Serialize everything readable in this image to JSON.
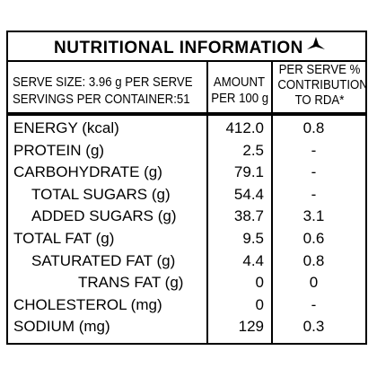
{
  "title": "NUTRITIONAL INFORMATION",
  "brand_icon": "star-emblem",
  "header": {
    "serve_size": "SERVE SIZE: 3.96 g PER SERVE",
    "servings": "SERVINGS PER CONTAINER:51",
    "amount_line1": "AMOUNT",
    "amount_line2": "PER 100 g",
    "rda_line1": "PER SERVE %",
    "rda_line2": "CONTRIBUTION",
    "rda_line3": "TO RDA*"
  },
  "rows": [
    {
      "label": "ENERGY (kcal)",
      "per100": "412.0",
      "rda": "0.8",
      "indent": 0
    },
    {
      "label": "PROTEIN (g)",
      "per100": "2.5",
      "rda": "-",
      "indent": 0
    },
    {
      "label": "CARBOHYDRATE (g)",
      "per100": "79.1",
      "rda": "-",
      "indent": 0
    },
    {
      "label": "TOTAL SUGARS (g)",
      "per100": "54.4",
      "rda": "-",
      "indent": 1
    },
    {
      "label": "ADDED SUGARS (g)",
      "per100": "38.7",
      "rda": "3.1",
      "indent": 1
    },
    {
      "label": "TOTAL FAT (g)",
      "per100": "9.5",
      "rda": "0.6",
      "indent": 0
    },
    {
      "label": "SATURATED FAT (g)",
      "per100": "4.4",
      "rda": "0.8",
      "indent": 1
    },
    {
      "label": "TRANS FAT (g)",
      "per100": "0",
      "rda": "0",
      "indent": 2
    },
    {
      "label": "CHOLESTEROL (mg)",
      "per100": "0",
      "rda": "-",
      "indent": 0
    },
    {
      "label": "SODIUM (mg)",
      "per100": "129",
      "rda": "0.3",
      "indent": 0
    }
  ]
}
